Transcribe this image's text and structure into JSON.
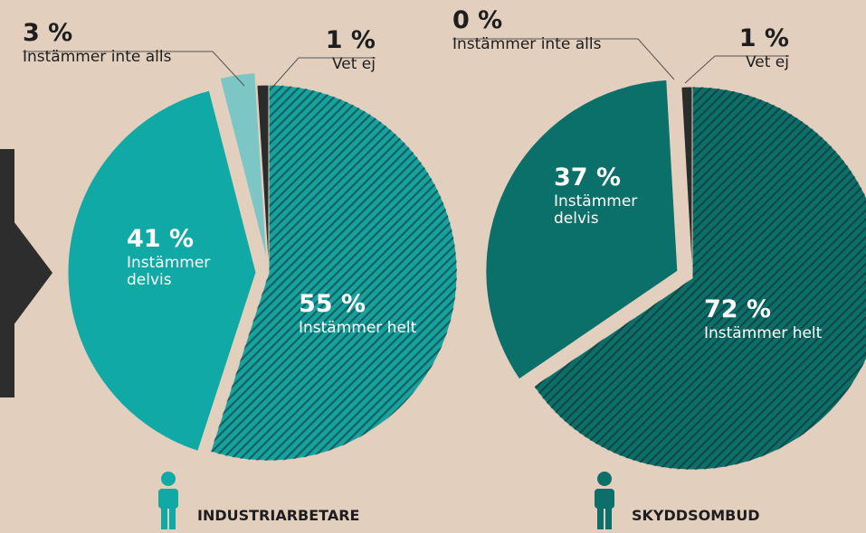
{
  "chart_data": [
    {
      "type": "pie",
      "title": "INDUSTRIARBETARE",
      "categories": [
        "Instämmer helt",
        "Instämmer delvis",
        "Instämmer inte alls",
        "Vet ej"
      ],
      "values": [
        55,
        41,
        3,
        1
      ],
      "value_labels": [
        "55 %",
        "41 %",
        "3 %",
        "1 %"
      ],
      "colors": [
        "#16a39f",
        "#10a9a6",
        "#7cc7c6",
        "#2b2b2b"
      ],
      "hatched": [
        true,
        false,
        false,
        false
      ]
    },
    {
      "type": "pie",
      "title": "SKYDDSOMBUD",
      "categories": [
        "Instämmer helt",
        "Instämmer delvis",
        "Instämmer inte alls",
        "Vet ej"
      ],
      "values": [
        72,
        37,
        0,
        1
      ],
      "value_labels": [
        "72 %",
        "37 %",
        "0 %",
        "1 %"
      ],
      "colors": [
        "#0c6f69",
        "#0b6f6a",
        "#7cc7c6",
        "#2b2b2b"
      ],
      "hatched": [
        true,
        false,
        false,
        false
      ]
    }
  ]
}
